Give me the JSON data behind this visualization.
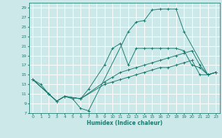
{
  "title": "",
  "xlabel": "Humidex (Indice chaleur)",
  "bg_color": "#cce8e8",
  "grid_color": "#ffffff",
  "line_color": "#1a7a6e",
  "series0_x": [
    0,
    1,
    2,
    3,
    4,
    5,
    6,
    7,
    12,
    13,
    14,
    15,
    16,
    17,
    18,
    19,
    22,
    23
  ],
  "series0_y": [
    14,
    13,
    11,
    9.5,
    10.5,
    10,
    8,
    7.5,
    24,
    26,
    26.3,
    28.5,
    28.7,
    28.7,
    28.7,
    24,
    15,
    15.5
  ],
  "series1_x": [
    0,
    2,
    3,
    4,
    6,
    7,
    9,
    10,
    11,
    12,
    13,
    14,
    15,
    16,
    17,
    18,
    19,
    20,
    21,
    22,
    23
  ],
  "series1_y": [
    14,
    11,
    9.5,
    10.5,
    10,
    12,
    17,
    20.5,
    21.5,
    17,
    20.5,
    20.5,
    20.5,
    20.5,
    20.5,
    20.5,
    20,
    17,
    16.5,
    15,
    15.5
  ],
  "series2_x": [
    0,
    2,
    3,
    4,
    6,
    9,
    10,
    11,
    12,
    13,
    14,
    15,
    16,
    17,
    18,
    19,
    20,
    21,
    22,
    23
  ],
  "series2_y": [
    14,
    11,
    9.5,
    10.5,
    10,
    13.5,
    14.5,
    15.5,
    16,
    16.5,
    17,
    17.5,
    18,
    18.5,
    19,
    19.5,
    20,
    17,
    15,
    15.5
  ],
  "series3_x": [
    0,
    2,
    3,
    4,
    6,
    9,
    10,
    11,
    12,
    13,
    14,
    15,
    16,
    17,
    18,
    19,
    20,
    21,
    22,
    23
  ],
  "series3_y": [
    14,
    11,
    9.5,
    10.5,
    10,
    13,
    13.5,
    14,
    14.5,
    15,
    15.5,
    16,
    16.5,
    16.5,
    17,
    17.5,
    18,
    15,
    15,
    15.5
  ],
  "xlim": [
    -0.5,
    23.5
  ],
  "ylim": [
    7,
    30
  ],
  "yticks": [
    7,
    9,
    11,
    13,
    15,
    17,
    19,
    21,
    23,
    25,
    27,
    29
  ],
  "xticks": [
    0,
    1,
    2,
    3,
    4,
    5,
    6,
    7,
    8,
    9,
    10,
    11,
    12,
    13,
    14,
    15,
    16,
    17,
    18,
    19,
    20,
    21,
    22,
    23
  ]
}
